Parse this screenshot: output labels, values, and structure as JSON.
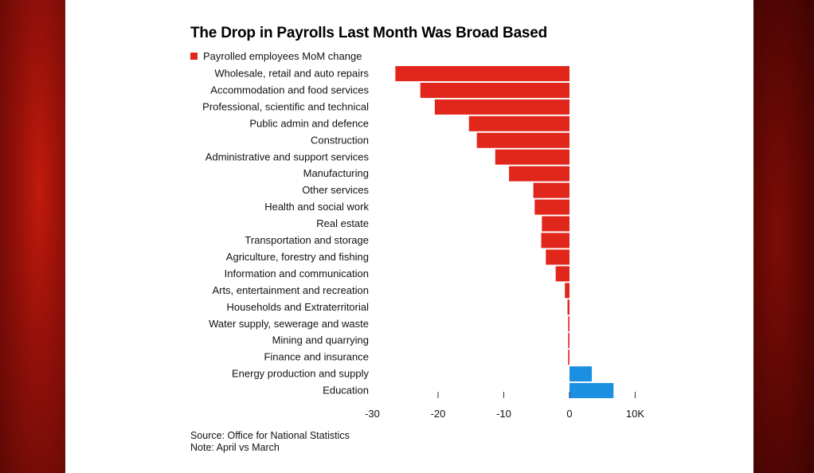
{
  "chart_data": {
    "type": "bar",
    "orientation": "horizontal",
    "title": "The Drop in Payrolls Last Month Was Broad Based",
    "legend": [
      {
        "name": "Payrolled employees MoM change",
        "color": "#e1261c"
      }
    ],
    "categories": [
      "Wholesale, retail and auto repairs",
      "Accommodation and food services",
      "Professional, scientific and technical",
      "Public admin and defence",
      "Construction",
      "Administrative and support services",
      "Manufacturing",
      "Other services",
      "Health and social work",
      "Real estate",
      "Transportation and storage",
      "Agriculture, forestry and fishing",
      "Information and communication",
      "Arts, entertainment and recreation",
      "Households and Extraterritorial",
      "Water supply, sewerage and waste",
      "Mining and quarrying",
      "Finance and insurance",
      "Energy production and supply",
      "Education"
    ],
    "values": [
      -26.5,
      -22.7,
      -20.5,
      -15.3,
      -14.1,
      -11.3,
      -9.2,
      -5.5,
      -5.3,
      -4.2,
      -4.3,
      -3.6,
      -2.1,
      -0.7,
      -0.3,
      -0.2,
      -0.2,
      -0.2,
      3.4,
      6.7
    ],
    "negative_color": "#e1261c",
    "positive_color": "#1b8fe0",
    "xlim": [
      -30,
      10
    ],
    "xticks": [
      -30,
      -20,
      -10,
      0,
      10
    ],
    "xtick_labels": [
      "-30",
      "-20",
      "-10",
      "0",
      "10K"
    ],
    "grid": false
  },
  "footnotes": {
    "source": "Source: Office for National Statistics",
    "note": "Note: April vs March"
  }
}
